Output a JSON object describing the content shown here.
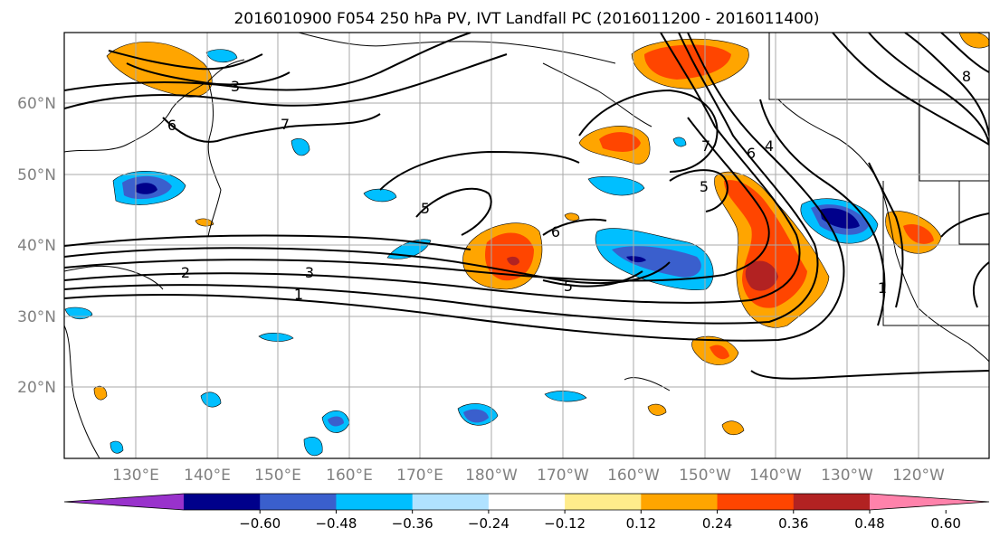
{
  "title": "2016010900 F054 250 hPa PV, IVT Landfall PC (2016011200 - 2016011400)",
  "map": {
    "lat_labels": [
      "20°N",
      "30°N",
      "40°N",
      "50°N",
      "60°N"
    ],
    "lon_labels": [
      "130°E",
      "140°E",
      "150°E",
      "160°E",
      "170°E",
      "180°W",
      "170°W",
      "160°W",
      "150°W",
      "140°W",
      "130°W",
      "120°W"
    ],
    "contour_labels": [
      "1",
      "2",
      "3",
      "4",
      "5",
      "6",
      "7",
      "8"
    ],
    "grid_color": "#aaaaaa",
    "tick_label_color": "#808080"
  },
  "colorbar": {
    "tick_labels": [
      "−0.60",
      "−0.48",
      "−0.36",
      "−0.24",
      "−0.12",
      "0.12",
      "0.24",
      "0.36",
      "0.48",
      "0.60"
    ],
    "colors": [
      "#9932cc",
      "#00008b",
      "#3a5fcd",
      "#00bfff",
      "#b0e2ff",
      "#ffffff",
      "#ffec8b",
      "#ffa500",
      "#ff4500",
      "#b22222",
      "#ff82ab"
    ]
  }
}
